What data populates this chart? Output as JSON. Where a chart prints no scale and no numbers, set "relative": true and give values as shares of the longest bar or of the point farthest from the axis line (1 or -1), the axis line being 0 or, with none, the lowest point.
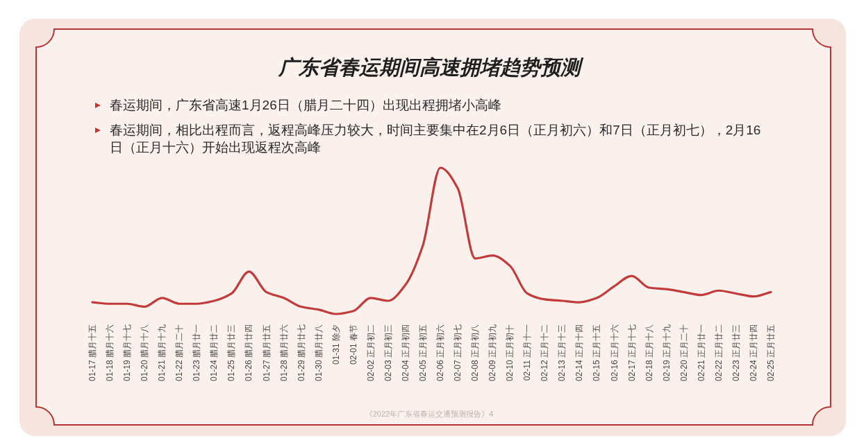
{
  "chart_data": {
    "type": "line",
    "title": "广东省春运期间高速拥堵趋势预测",
    "categories": [
      "01-17 腊月十五",
      "01-18 腊月十六",
      "01-19 腊月十七",
      "01-20 腊月十八",
      "01-21 腊月十九",
      "01-22 腊月二十",
      "01-23 腊月廿一",
      "01-24 腊月廿二",
      "01-25 腊月廿三",
      "01-26 腊月廿四",
      "01-27 腊月廿五",
      "01-28 腊月廿六",
      "01-29 腊月廿七",
      "01-30 腊月廿八",
      "01-31 除夕",
      "02-01 春节",
      "02-02 正月初二",
      "02-03 正月初三",
      "02-04 正月初四",
      "02-05 正月初五",
      "02-06 正月初六",
      "02-07 正月初七",
      "02-08 正月初八",
      "02-09 正月初九",
      "02-10 正月初十",
      "02-11 正月十一",
      "02-12 正月十二",
      "02-13 正月十三",
      "02-14 正月十四",
      "02-15 正月十五",
      "02-16 正月十六",
      "02-17 正月十七",
      "02-18 正月十八",
      "02-19 正月十九",
      "02-20 正月二十",
      "02-21 正月廿一",
      "02-22 正月廿二",
      "02-23 正月廿三",
      "02-24 正月廿四",
      "02-25 正月廿五"
    ],
    "series": [
      {
        "color": "#c23b3b",
        "values": [
          0.08,
          0.07,
          0.07,
          0.05,
          0.11,
          0.07,
          0.07,
          0.09,
          0.14,
          0.29,
          0.15,
          0.11,
          0.05,
          0.03,
          0,
          0.02,
          0.11,
          0.09,
          0.2,
          0.47,
          1,
          0.86,
          0.38,
          0.4,
          0.33,
          0.14,
          0.1,
          0.09,
          0.08,
          0.11,
          0.19,
          0.26,
          0.18,
          0.17,
          0.15,
          0.13,
          0.16,
          0.14,
          0.12,
          0.15
        ]
      }
    ],
    "relative": true,
    "annotations": [
      "春运期间，广东省高速1月26日（腊月二十四）出现出程拥堵小高峰",
      "春运期间，相比出程而言，返程高峰压力较大，时间主要集中在2月6日（正月初六）和7日（正月初七），2月16日（正月十六）开始出现返程次高峰",
      "《2022年广东省春运交通预测报告》4"
    ]
  }
}
